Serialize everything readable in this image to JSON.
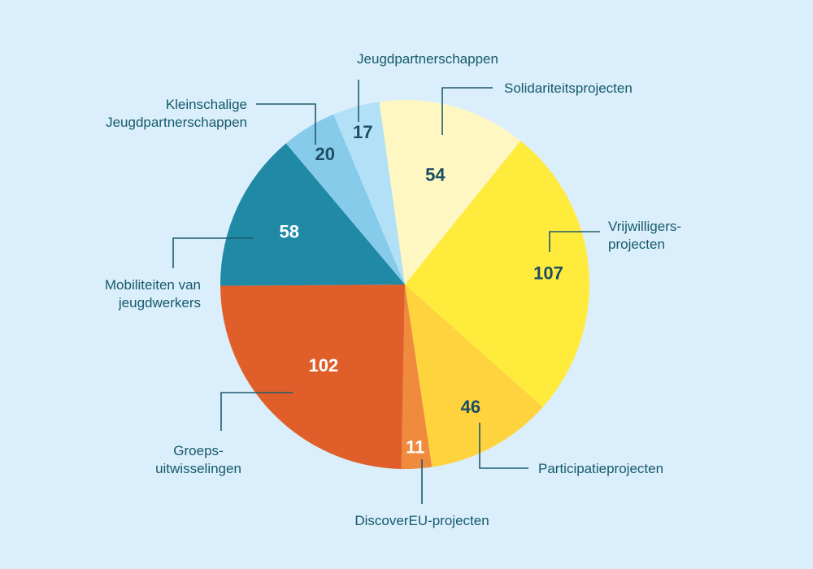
{
  "chart_data": {
    "type": "pie",
    "slices": [
      {
        "label": "Solidariteitsprojecten",
        "value": 54,
        "color": "#fff7c2",
        "value_color": "#1d4d63"
      },
      {
        "label": "Vrijwilligers-\nprojecten",
        "value": 107,
        "color": "#ffeb3b",
        "value_color": "#1d4d63"
      },
      {
        "label": "Participatieprojecten",
        "value": 46,
        "color": "#ffd33d",
        "value_color": "#1d4d63"
      },
      {
        "label": "DiscoverEU-projecten",
        "value": 11,
        "color": "#f08a3c",
        "value_color": "#ffffff"
      },
      {
        "label": "Groeps-\nuitwisselingen",
        "value": 102,
        "color": "#e05e2a",
        "value_color": "#ffffff"
      },
      {
        "label": "Mobiliteiten van\njeugdwerkers",
        "value": 58,
        "color": "#1f89a6",
        "value_color": "#ffffff"
      },
      {
        "label": "Kleinschalige\nJeugdpartnerschappen",
        "value": 20,
        "color": "#86cbea",
        "value_color": "#1d4d63"
      },
      {
        "label": "Jeugdpartnerschappen",
        "value": 17,
        "color": "#b2e0f7",
        "value_color": "#1d4d63"
      }
    ]
  }
}
